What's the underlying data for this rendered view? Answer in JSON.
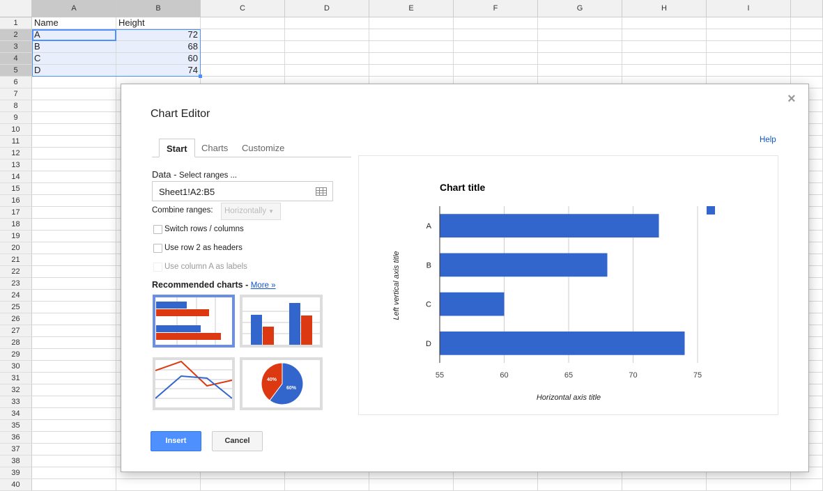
{
  "sheet": {
    "columns": [
      "A",
      "B",
      "C",
      "D",
      "E",
      "F",
      "G",
      "H",
      "I",
      ""
    ],
    "row_numbers": [
      "1",
      "2",
      "3",
      "4",
      "5",
      "6",
      "7",
      "8",
      "9",
      "10",
      "11",
      "12",
      "13",
      "14",
      "15",
      "16",
      "17",
      "18",
      "19",
      "20",
      "21",
      "22",
      "23",
      "24",
      "25",
      "26",
      "27",
      "28",
      "29",
      "30",
      "31",
      "32",
      "33",
      "34",
      "35",
      "36",
      "37",
      "38",
      "39",
      "40"
    ],
    "cells": [
      [
        "Name",
        "Height"
      ],
      [
        "A",
        "72"
      ],
      [
        "B",
        "68"
      ],
      [
        "C",
        "60"
      ],
      [
        "D",
        "74"
      ]
    ]
  },
  "dialog": {
    "title": "Chart Editor",
    "close_icon": "close-icon",
    "help": "Help",
    "tabs": [
      {
        "label": "Start"
      },
      {
        "label": "Charts"
      },
      {
        "label": "Customize"
      }
    ],
    "data_label": "Data - ",
    "data_hint": "Select ranges ...",
    "range_value": "Sheet1!A2:B5",
    "combine_label": "Combine ranges:",
    "combine_value": "Horizontally",
    "checkboxes": [
      {
        "label": "Switch rows / columns",
        "checked": false,
        "disabled": false
      },
      {
        "label": "Use row 2 as headers",
        "checked": false,
        "disabled": false
      },
      {
        "label": "Use column A as labels",
        "checked": false,
        "disabled": true
      }
    ],
    "recommended_label": "Recommended charts - ",
    "more_link": "More »",
    "pie_labels": [
      "40%",
      "60%"
    ],
    "insert": "Insert",
    "cancel": "Cancel"
  },
  "chart_data": {
    "type": "bar",
    "orientation": "horizontal",
    "title": "Chart title",
    "xlabel": "Horizontal axis title",
    "ylabel": "Left vertical axis title",
    "categories": [
      "A",
      "B",
      "C",
      "D"
    ],
    "values": [
      72,
      68,
      60,
      74
    ],
    "xlim": [
      55,
      75
    ],
    "xticks": [
      "55",
      "60",
      "65",
      "70",
      "75"
    ],
    "grid": true,
    "legend": "top-right",
    "color": "#3366cc"
  }
}
